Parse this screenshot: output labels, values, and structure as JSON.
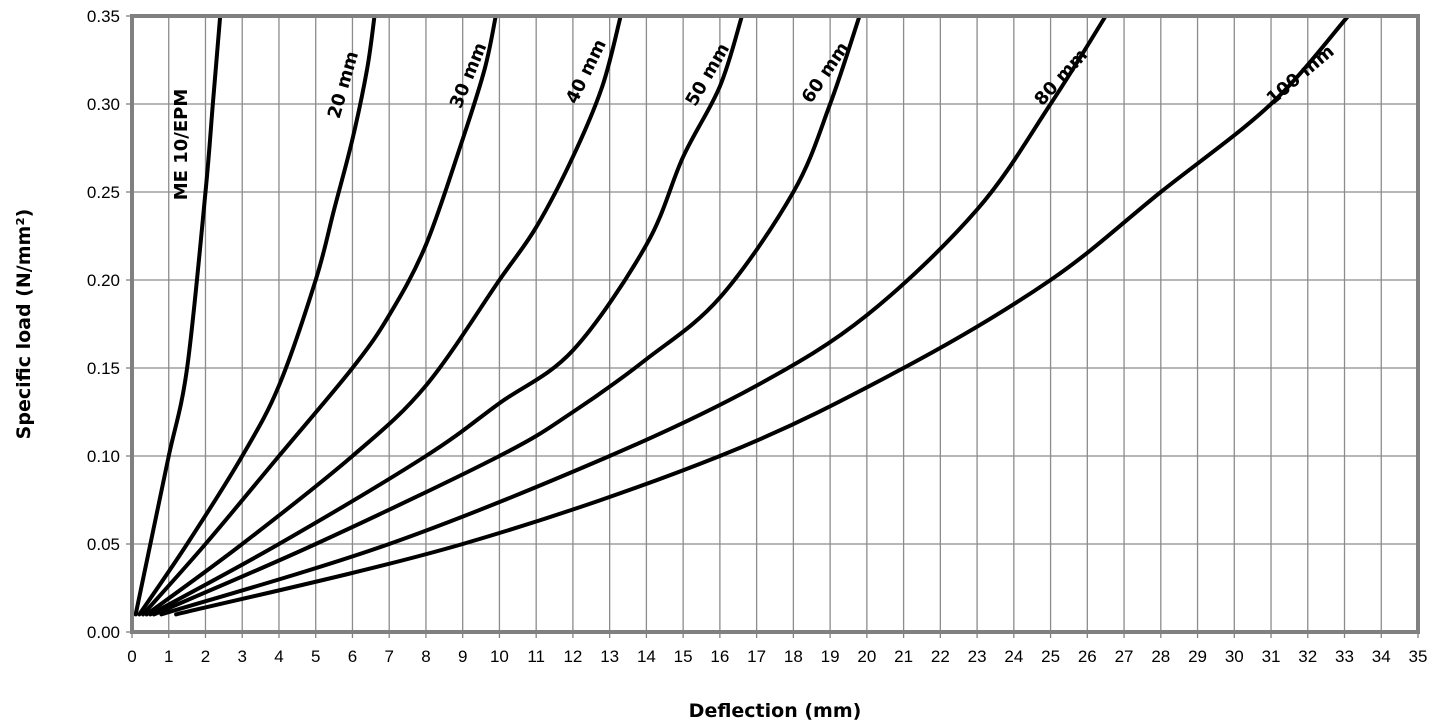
{
  "chart_data": {
    "type": "line",
    "title": "",
    "xlabel": "Deflection (mm)",
    "ylabel": "Specific load (N/mm²)",
    "xlim": [
      0,
      35
    ],
    "ylim": [
      0,
      0.35
    ],
    "x_ticks": [
      "0",
      "1",
      "2",
      "3",
      "4",
      "5",
      "6",
      "7",
      "8",
      "9",
      "10",
      "11",
      "12",
      "13",
      "14",
      "15",
      "16",
      "17",
      "18",
      "19",
      "20",
      "21",
      "22",
      "23",
      "24",
      "25",
      "26",
      "27",
      "28",
      "29",
      "30",
      "31",
      "32",
      "33",
      "34",
      "35"
    ],
    "y_ticks": [
      "0.00",
      "0.05",
      "0.10",
      "0.15",
      "0.20",
      "0.25",
      "0.30",
      "0.35"
    ],
    "grid": true,
    "legend": "none",
    "series": [
      {
        "name": "ME 10/EPM",
        "x": [
          0.1,
          0.5,
          1.0,
          1.5,
          2.0,
          2.2,
          2.4
        ],
        "y": [
          0.01,
          0.05,
          0.1,
          0.15,
          0.25,
          0.3,
          0.35
        ]
      },
      {
        "name": "20 mm",
        "x": [
          0.2,
          1.5,
          3.0,
          4.0,
          5.0,
          5.5,
          6.0,
          6.4,
          6.6
        ],
        "y": [
          0.01,
          0.05,
          0.1,
          0.14,
          0.2,
          0.24,
          0.28,
          0.32,
          0.35
        ]
      },
      {
        "name": "30 mm",
        "x": [
          0.3,
          2.0,
          4.0,
          6.0,
          7.0,
          8.0,
          9.0,
          9.6,
          9.9
        ],
        "y": [
          0.01,
          0.05,
          0.1,
          0.15,
          0.18,
          0.22,
          0.28,
          0.32,
          0.35
        ]
      },
      {
        "name": "40 mm",
        "x": [
          0.4,
          3.0,
          6.0,
          8.0,
          10.0,
          11.0,
          12.0,
          12.8,
          13.3
        ],
        "y": [
          0.01,
          0.05,
          0.1,
          0.14,
          0.2,
          0.23,
          0.27,
          0.31,
          0.35
        ]
      },
      {
        "name": "50 mm",
        "x": [
          0.5,
          4.0,
          8.0,
          10.0,
          12.0,
          14.0,
          15.0,
          16.0,
          16.6
        ],
        "y": [
          0.01,
          0.05,
          0.1,
          0.13,
          0.16,
          0.22,
          0.27,
          0.31,
          0.35
        ]
      },
      {
        "name": "60 mm",
        "x": [
          0.6,
          5.0,
          10.0,
          12.0,
          14.0,
          16.0,
          18.0,
          19.0,
          19.8
        ],
        "y": [
          0.01,
          0.05,
          0.1,
          0.125,
          0.155,
          0.19,
          0.25,
          0.3,
          0.35
        ]
      },
      {
        "name": "80 mm",
        "x": [
          0.8,
          7.0,
          13.0,
          17.0,
          20.0,
          23.0,
          25.0,
          26.5
        ],
        "y": [
          0.01,
          0.05,
          0.1,
          0.14,
          0.18,
          0.24,
          0.3,
          0.35
        ]
      },
      {
        "name": "100 mm",
        "x": [
          1.2,
          9.0,
          16.0,
          21.0,
          25.0,
          28.0,
          31.0,
          33.1
        ],
        "y": [
          0.01,
          0.05,
          0.1,
          0.15,
          0.2,
          0.25,
          0.3,
          0.35
        ]
      }
    ],
    "curve_labels": [
      "ME 10/EPM",
      "20 mm",
      "30 mm",
      "40 mm",
      "50 mm",
      "60 mm",
      "80 mm",
      "100 mm"
    ]
  }
}
